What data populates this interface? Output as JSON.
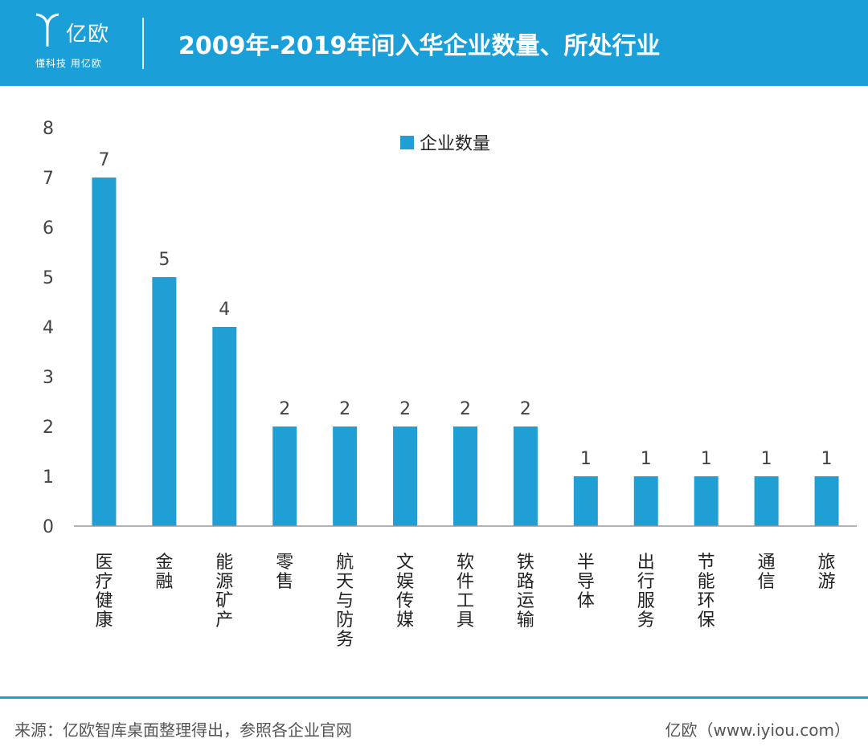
{
  "header": {
    "logo_name": "亿欧",
    "logo_slogan": "懂科技 用亿欧",
    "title": "2009年-2019年间入华企业数量、所处行业"
  },
  "colors": {
    "header_bg": "#1a9fd9",
    "bar": "#1f9fd4",
    "axis": "#999999"
  },
  "chart_data": {
    "type": "bar",
    "categories": [
      "医疗健康",
      "金融",
      "能源矿产",
      "零售",
      "航天与防务",
      "文娱传媒",
      "软件工具",
      "铁路运输",
      "半导体",
      "出行服务",
      "节能环保",
      "通信",
      "旅游"
    ],
    "series": [
      {
        "name": "企业数量",
        "values": [
          7,
          5,
          4,
          2,
          2,
          2,
          2,
          2,
          1,
          1,
          1,
          1,
          1
        ]
      }
    ],
    "ylim": [
      0,
      8
    ],
    "yticks": [
      "0",
      "1",
      "2",
      "3",
      "4",
      "5",
      "6",
      "7",
      "8"
    ],
    "grid": false,
    "legend_position": "top-center",
    "data_labels": true
  },
  "footer": {
    "source": "来源：亿欧智库桌面整理得出，参照各企业官网",
    "brand": "亿欧（www.iyiou.com）"
  }
}
